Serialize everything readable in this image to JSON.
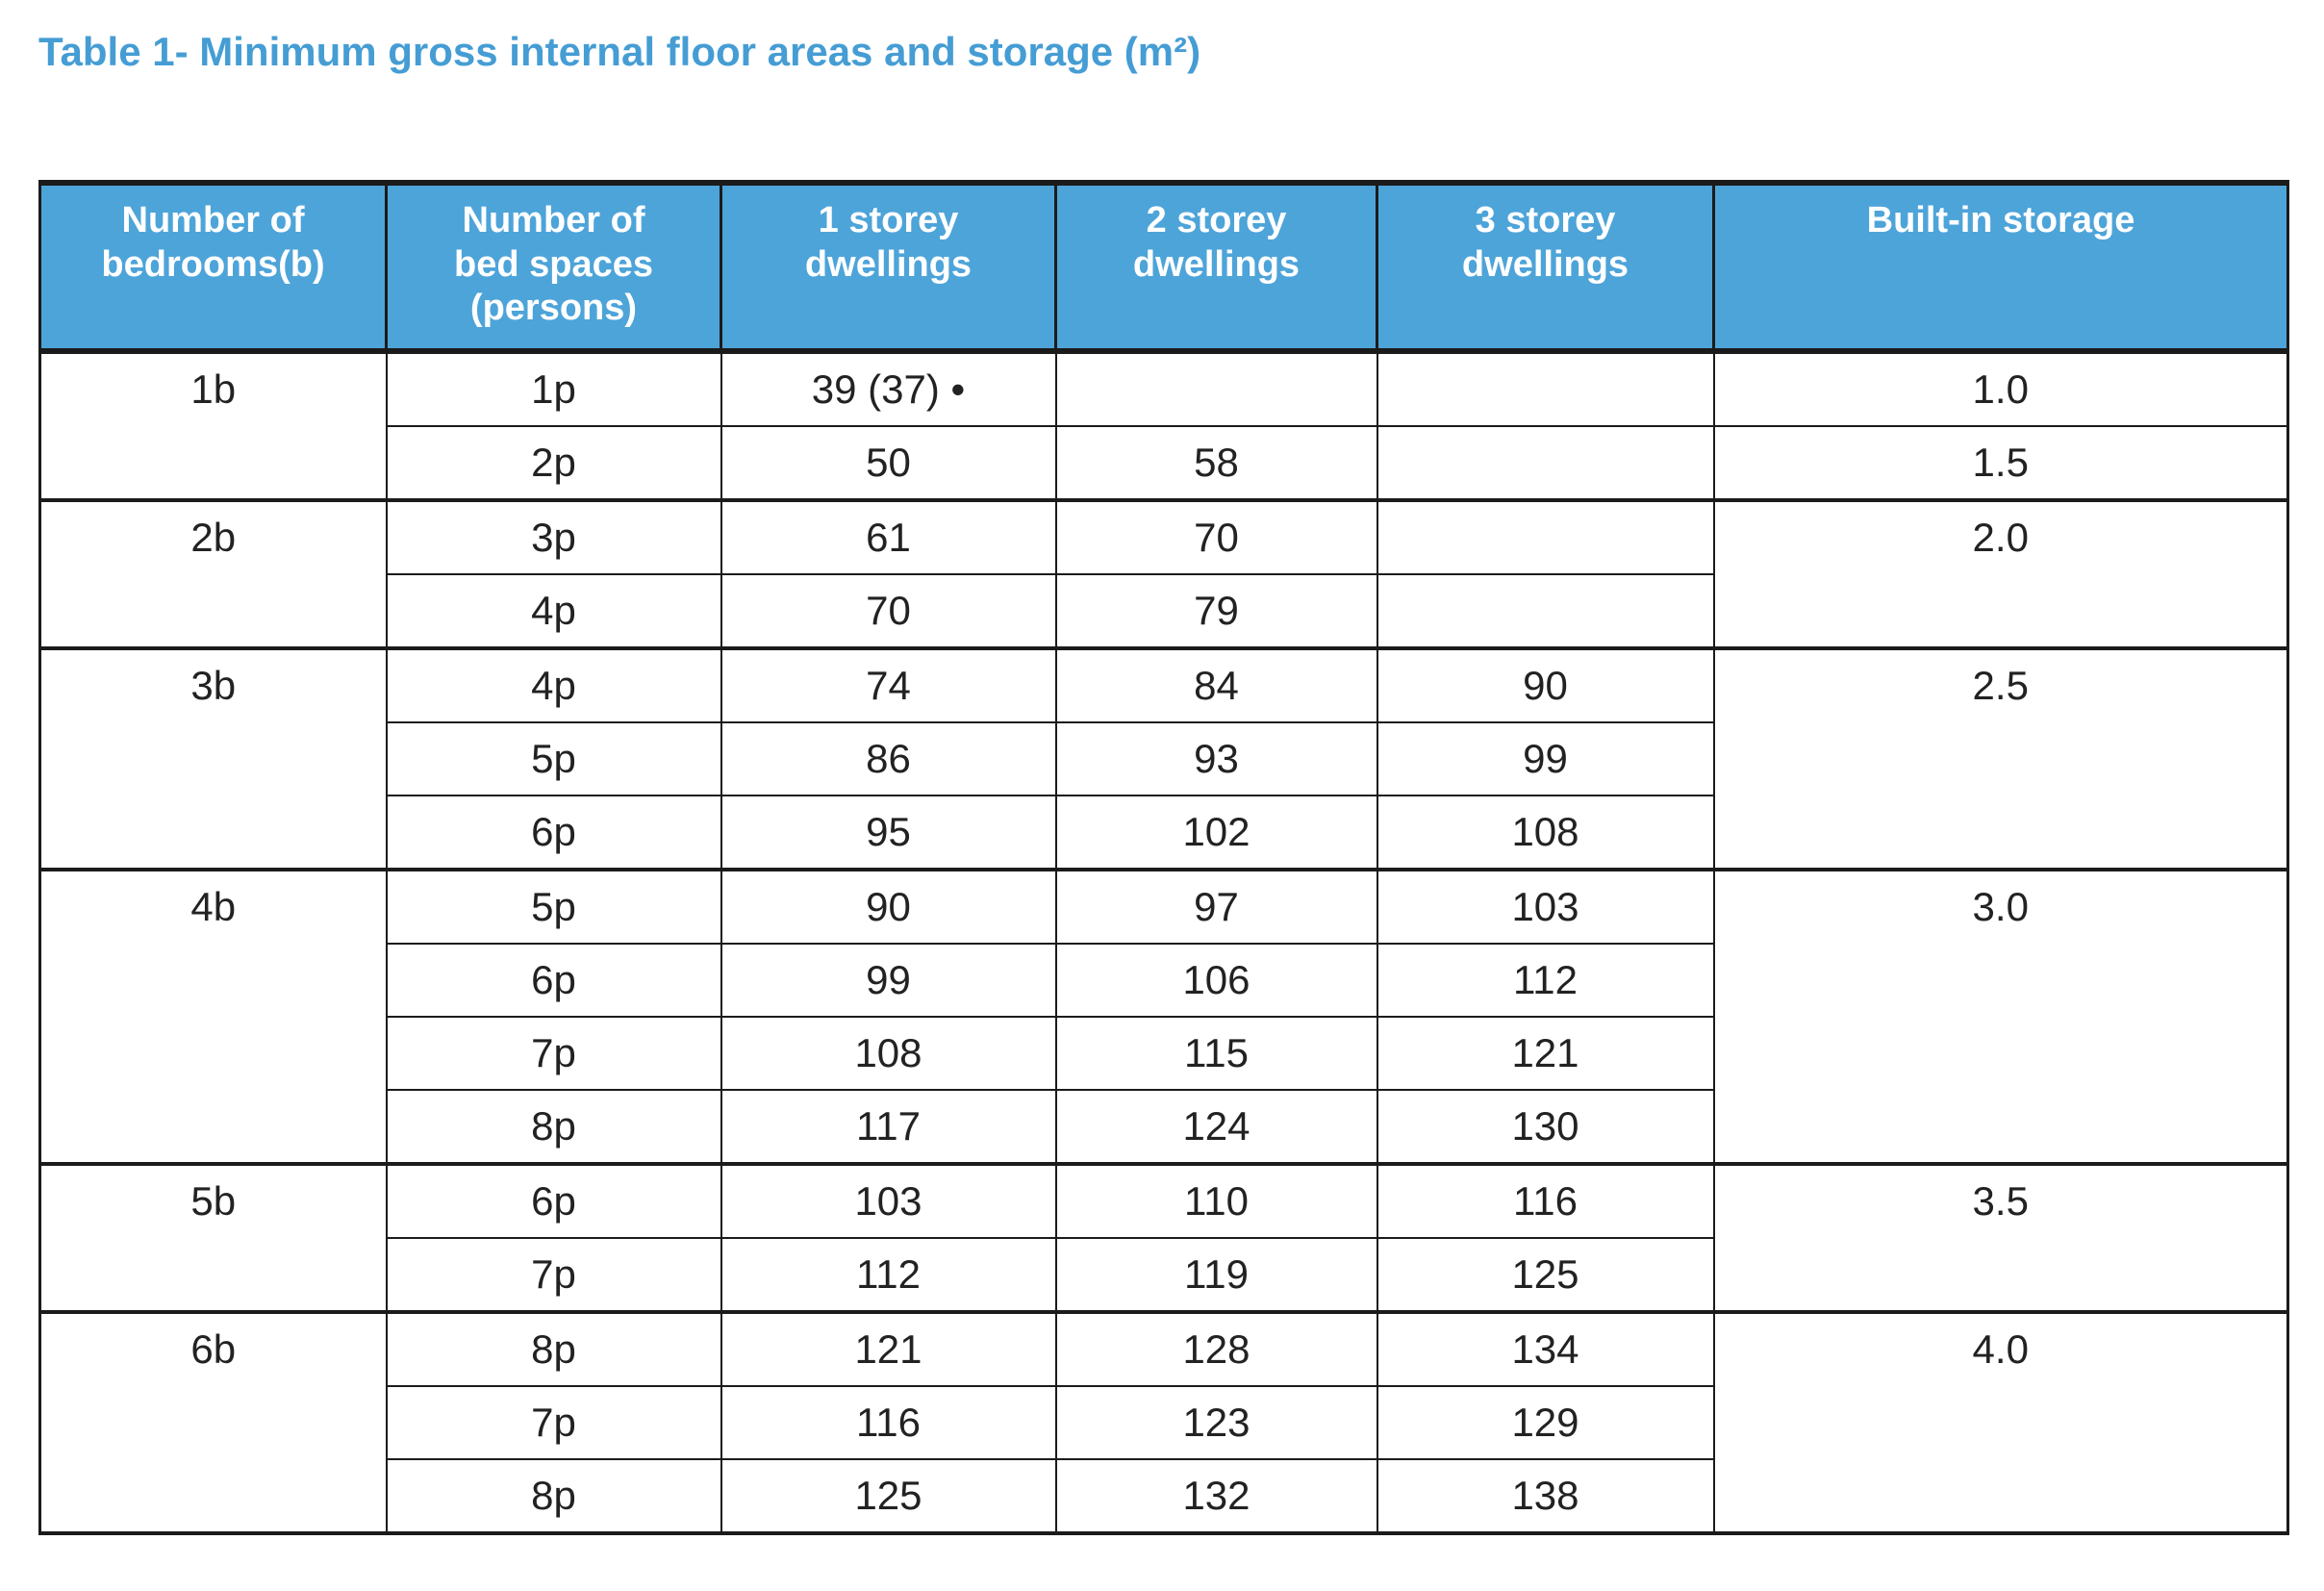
{
  "title": "Table 1- Minimum gross internal floor areas and storage (m²)",
  "colors": {
    "page_bg": "#ffffff",
    "title": "#459dd4",
    "header_bg": "#4da4d9",
    "header_text": "#ffffff",
    "line": "#1b1b1b",
    "body_text": "#222222"
  },
  "table": {
    "headers": [
      "Number of\nbedrooms(b)",
      "Number of\nbed spaces\n(persons)",
      "1 storey\ndwellings",
      "2 storey\ndwellings",
      "3 storey\ndwellings",
      "Built-in storage"
    ],
    "rows": [
      {
        "bedrooms": "1b",
        "spaces": "1p",
        "s1": "39 (37) •",
        "s2": "",
        "s3": "",
        "storage": "1.0"
      },
      {
        "spaces": "2p",
        "s1": "50",
        "s2": "58",
        "s3": "",
        "storage": "1.5"
      },
      {
        "bedrooms": "2b",
        "spaces": "3p",
        "s1": "61",
        "s2": "70",
        "s3": "",
        "storage": "2.0"
      },
      {
        "spaces": "4p",
        "s1": "70",
        "s2": "79",
        "s3": ""
      },
      {
        "bedrooms": "3b",
        "spaces": "4p",
        "s1": "74",
        "s2": "84",
        "s3": "90",
        "storage": "2.5"
      },
      {
        "spaces": "5p",
        "s1": "86",
        "s2": "93",
        "s3": "99"
      },
      {
        "spaces": "6p",
        "s1": "95",
        "s2": "102",
        "s3": "108"
      },
      {
        "bedrooms": "4b",
        "spaces": "5p",
        "s1": "90",
        "s2": "97",
        "s3": "103",
        "storage": "3.0"
      },
      {
        "spaces": "6p",
        "s1": "99",
        "s2": "106",
        "s3": "112"
      },
      {
        "spaces": "7p",
        "s1": "108",
        "s2": "115",
        "s3": "121"
      },
      {
        "spaces": "8p",
        "s1": "117",
        "s2": "124",
        "s3": "130"
      },
      {
        "bedrooms": "5b",
        "spaces": "6p",
        "s1": "103",
        "s2": "110",
        "s3": "116",
        "storage": "3.5"
      },
      {
        "spaces": "7p",
        "s1": "112",
        "s2": "119",
        "s3": "125"
      },
      {
        "bedrooms": "6b",
        "spaces": "8p",
        "s1": "121",
        "s2": "128",
        "s3": "134",
        "storage": "4.0"
      },
      {
        "spaces": "7p",
        "s1": "116",
        "s2": "123",
        "s3": "129"
      },
      {
        "spaces": "8p",
        "s1": "125",
        "s2": "132",
        "s3": "138"
      }
    ]
  }
}
